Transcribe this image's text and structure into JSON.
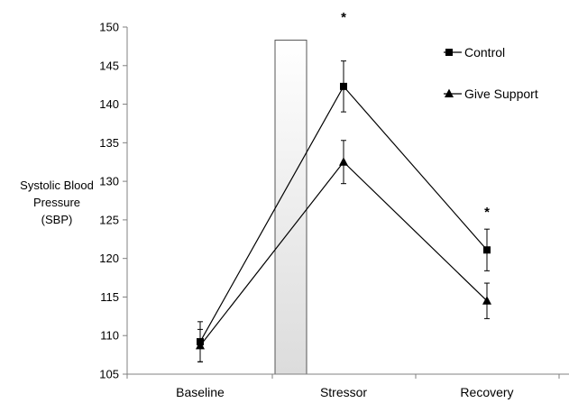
{
  "chart_data": {
    "type": "line",
    "categories": [
      "Baseline",
      "Stressor",
      "Recovery"
    ],
    "ylabel_lines": [
      "Systolic Blood",
      "Pressure",
      "(SBP)"
    ],
    "ylim": [
      105,
      150
    ],
    "yticks": [
      105,
      110,
      115,
      120,
      125,
      130,
      135,
      140,
      145,
      150
    ],
    "grid": false,
    "legend_position": "top-right",
    "series": [
      {
        "name": "Control",
        "marker": "square",
        "values": [
          109.2,
          142.3,
          121.1
        ],
        "errors": [
          2.6,
          3.3,
          2.7
        ]
      },
      {
        "name": "Give Support",
        "marker": "triangle",
        "values": [
          108.7,
          132.5,
          114.5
        ],
        "errors": [
          2.1,
          2.8,
          2.3
        ]
      }
    ],
    "stressor_bar": {
      "top_value": 148.3
    },
    "significance_markers": [
      {
        "category": "Stressor",
        "label": "*"
      },
      {
        "category": "Recovery",
        "label": "*"
      }
    ]
  }
}
